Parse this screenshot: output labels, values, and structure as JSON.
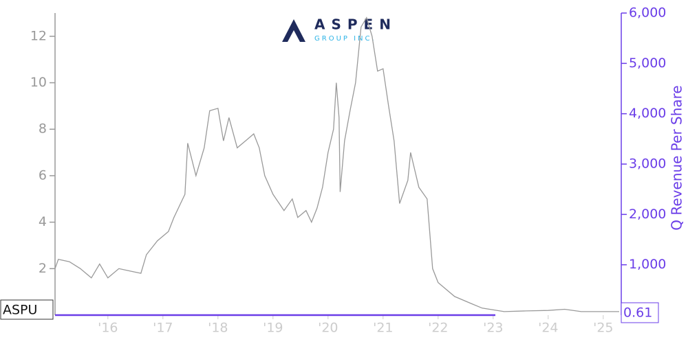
{
  "chart_data": {
    "type": "line",
    "watermark": "ASPEN",
    "watermark_sub": "GROUP INC.",
    "y2label": "Q Revenue Per Share",
    "xlim": [
      2015.04,
      2025.29
    ],
    "xticks": [
      {
        "value": 2016,
        "label": "'16"
      },
      {
        "value": 2017,
        "label": "'17"
      },
      {
        "value": 2018,
        "label": "'18"
      },
      {
        "value": 2019,
        "label": "'19"
      },
      {
        "value": 2020,
        "label": "'20"
      },
      {
        "value": 2021,
        "label": "'21"
      },
      {
        "value": 2022,
        "label": "'22"
      },
      {
        "value": 2023,
        "label": "'23"
      },
      {
        "value": 2024,
        "label": "'24"
      },
      {
        "value": 2025,
        "label": "'25"
      }
    ],
    "ylim": [
      0,
      13
    ],
    "yticks": [
      2,
      4,
      6,
      8,
      10,
      12
    ],
    "y2lim": [
      0,
      6000
    ],
    "y2ticks": [
      {
        "value": 1000,
        "label": "1,000"
      },
      {
        "value": 2000,
        "label": "2,000"
      },
      {
        "value": 3000,
        "label": "3,000"
      },
      {
        "value": 4000,
        "label": "4,000"
      },
      {
        "value": 5000,
        "label": "5,000"
      },
      {
        "value": 6000,
        "label": "6,000"
      }
    ],
    "series": [
      {
        "name": "ASPU",
        "color": "#999999",
        "x": [
          2015.04,
          2015.1,
          2015.3,
          2015.5,
          2015.7,
          2015.85,
          2016.0,
          2016.2,
          2016.4,
          2016.6,
          2016.7,
          2016.9,
          2017.1,
          2017.2,
          2017.4,
          2017.45,
          2017.6,
          2017.75,
          2017.85,
          2018.0,
          2018.1,
          2018.2,
          2018.35,
          2018.5,
          2018.65,
          2018.75,
          2018.85,
          2019.0,
          2019.2,
          2019.35,
          2019.45,
          2019.6,
          2019.7,
          2019.8,
          2019.9,
          2020.0,
          2020.1,
          2020.15,
          2020.2,
          2020.22,
          2020.3,
          2020.4,
          2020.5,
          2020.6,
          2020.7,
          2020.8,
          2020.9,
          2021.0,
          2021.1,
          2021.2,
          2021.3,
          2021.45,
          2021.5,
          2021.65,
          2021.8,
          2021.9,
          2022.0,
          2022.3,
          2022.6,
          2022.8,
          2023.2,
          2023.6,
          2024.0,
          2024.3,
          2024.6,
          2025.0,
          2025.29
        ],
        "values": [
          2.0,
          2.4,
          2.3,
          2.0,
          1.6,
          2.2,
          1.6,
          2.0,
          1.9,
          1.8,
          2.6,
          3.2,
          3.6,
          4.2,
          5.2,
          7.4,
          6.0,
          7.2,
          8.8,
          8.9,
          7.5,
          8.5,
          7.2,
          7.5,
          7.8,
          7.2,
          6.0,
          5.2,
          4.5,
          5.0,
          4.2,
          4.5,
          4.0,
          4.6,
          5.5,
          7.0,
          8.0,
          10.0,
          8.5,
          5.3,
          7.5,
          8.8,
          10.0,
          12.4,
          12.8,
          12.0,
          10.5,
          10.6,
          9.0,
          7.5,
          4.8,
          5.8,
          7.0,
          5.5,
          5.0,
          2.0,
          1.4,
          0.8,
          0.5,
          0.3,
          0.15,
          0.18,
          0.2,
          0.25,
          0.15,
          0.15,
          0.15
        ]
      },
      {
        "name": "Q Revenue Per Share",
        "color": "#6a3de8",
        "axis": "y2",
        "x": [
          2015.04,
          2017.0,
          2019.0,
          2021.0,
          2023.04
        ],
        "values": [
          0.61,
          0.61,
          0.61,
          0.61,
          0.61
        ]
      }
    ]
  }
}
